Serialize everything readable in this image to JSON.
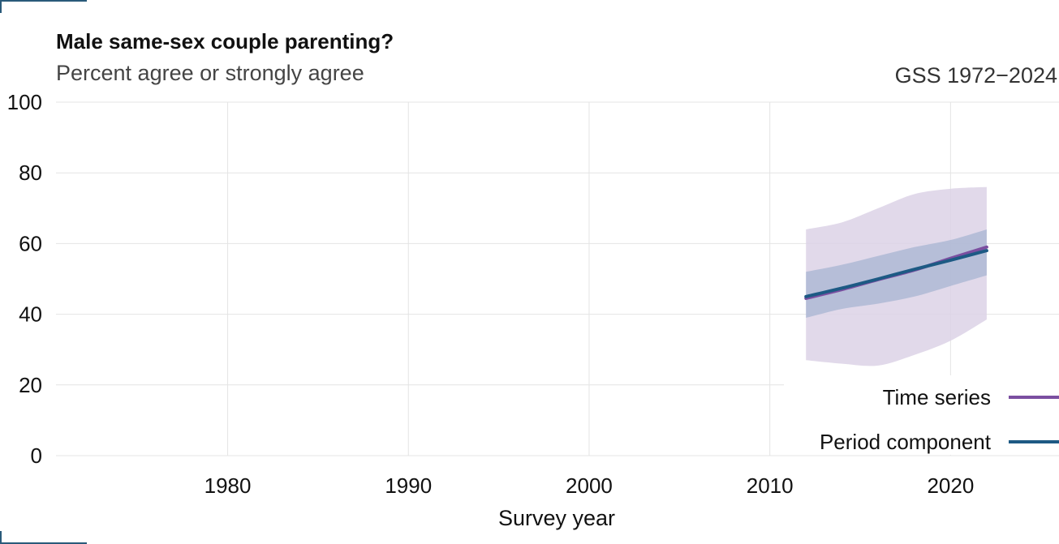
{
  "header": {
    "title": "Male same-sex couple parenting?",
    "subtitle": "Percent agree or strongly agree",
    "source": "GSS 1972−2024"
  },
  "chart_data": {
    "type": "line",
    "title": "Male same-sex couple parenting?",
    "subtitle": "Percent agree or strongly agree",
    "xlabel": "Survey year",
    "ylabel": "",
    "xlim": [
      1970.5,
      2026
    ],
    "ylim": [
      0,
      100
    ],
    "xticks": [
      1980,
      1990,
      2000,
      2010,
      2020
    ],
    "yticks": [
      0,
      20,
      40,
      60,
      80,
      100
    ],
    "grid": true,
    "legend_position": "bottom-right",
    "series": [
      {
        "name": "Time series",
        "color": "#7b4fa0",
        "band_color": "#dcd2e6",
        "x": [
          2012,
          2014,
          2016,
          2018,
          2020,
          2022
        ],
        "values": [
          44.5,
          47.0,
          49.8,
          52.5,
          55.8,
          59.0
        ],
        "lower": [
          27.0,
          26.0,
          25.5,
          28.5,
          32.5,
          38.5
        ],
        "upper": [
          64.0,
          66.0,
          70.0,
          74.0,
          75.5,
          76.0
        ]
      },
      {
        "name": "Period component",
        "color": "#1d5a84",
        "band_color": "#a7b4d2",
        "x": [
          2012,
          2014,
          2016,
          2018,
          2020,
          2022
        ],
        "values": [
          45.0,
          47.4,
          50.0,
          52.7,
          55.3,
          58.0
        ],
        "lower": [
          39.0,
          41.5,
          43.0,
          45.0,
          48.0,
          51.0
        ],
        "upper": [
          52.0,
          54.0,
          56.5,
          59.0,
          61.0,
          64.0
        ]
      }
    ]
  }
}
